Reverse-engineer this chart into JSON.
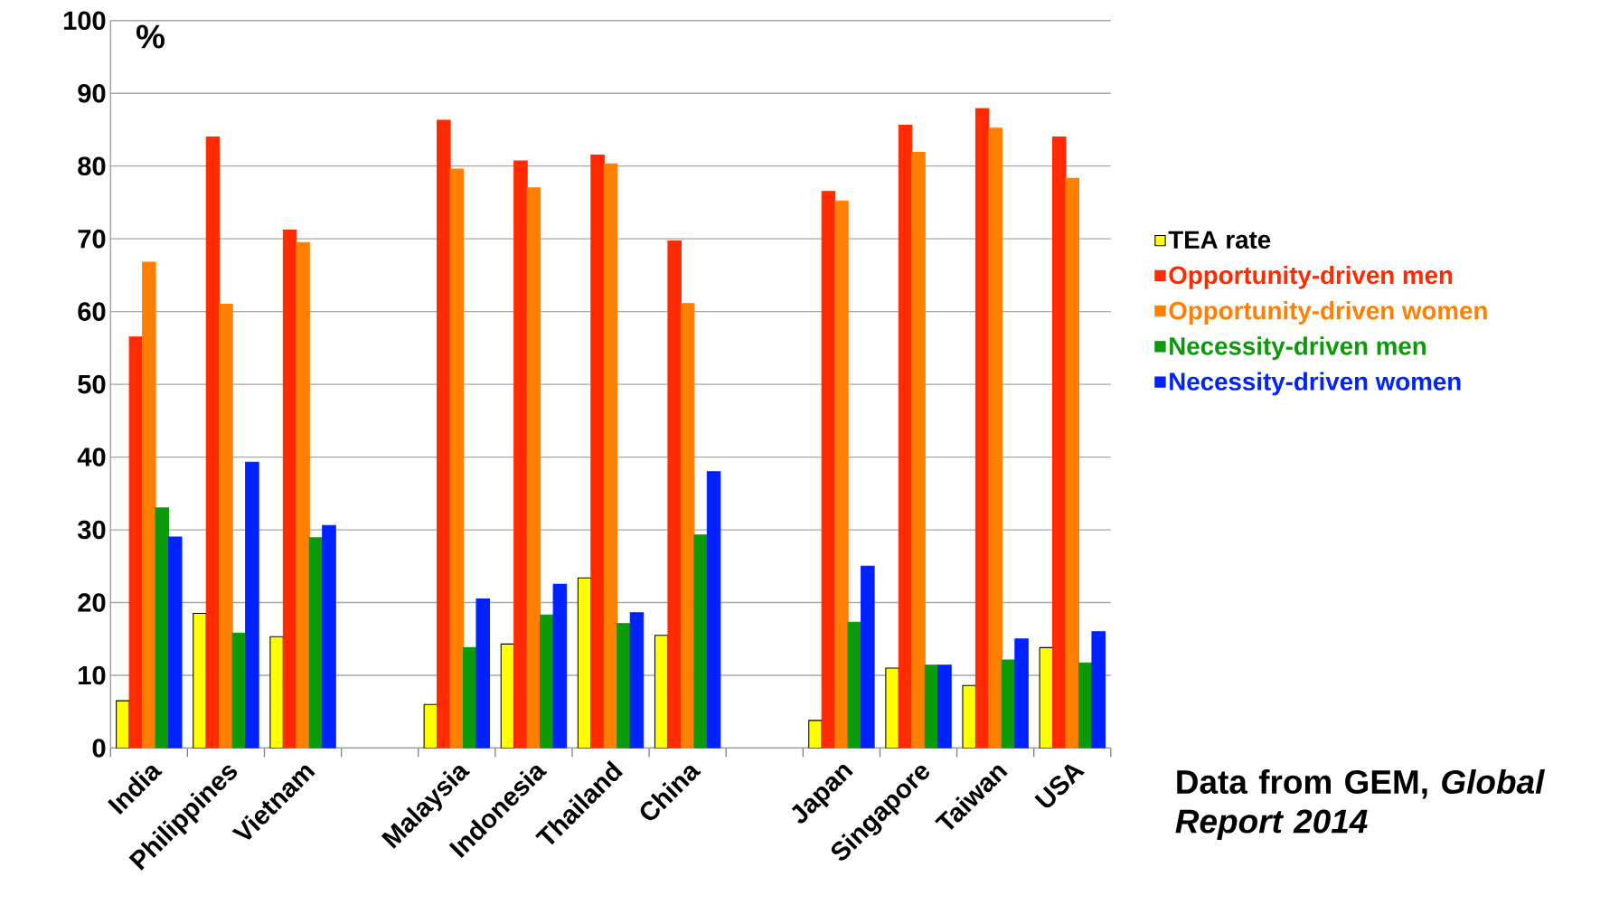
{
  "chart_data": {
    "type": "bar",
    "ylabel": "%",
    "categories": [
      "India",
      "Philippines",
      "Vietnam",
      null,
      "Malaysia",
      "Indonesia",
      "Thailand",
      "China",
      null,
      "Japan",
      "Singapore",
      "Taiwan",
      "USA"
    ],
    "series": [
      {
        "name": "TEA rate",
        "color": "#ffff00",
        "values": [
          6.5,
          18.5,
          15.3,
          null,
          6,
          14.3,
          23.4,
          15.5,
          null,
          3.8,
          11,
          8.6,
          13.8
        ]
      },
      {
        "name": "Opportunity-driven men",
        "color": "#ff2a00",
        "values": [
          56.5,
          84,
          71.2,
          null,
          86.3,
          80.7,
          81.5,
          69.7,
          null,
          76.5,
          85.6,
          87.9,
          84
        ]
      },
      {
        "name": "Opportunity-driven women",
        "color": "#ff7f00",
        "values": [
          66.8,
          61,
          69.5,
          null,
          79.6,
          77,
          80.3,
          61.1,
          null,
          75.2,
          81.9,
          85.2,
          78.3
        ]
      },
      {
        "name": "Necessity-driven men",
        "color": "#0a9a0a",
        "values": [
          33,
          15.8,
          28.9,
          null,
          13.8,
          18.3,
          17.1,
          29.3,
          null,
          17.3,
          11.4,
          12.1,
          11.7
        ]
      },
      {
        "name": "Necessity-driven women",
        "color": "#0022ff",
        "values": [
          29,
          39.3,
          30.6,
          null,
          20.5,
          22.5,
          18.6,
          38,
          null,
          25,
          11.4,
          15,
          16
        ]
      }
    ],
    "ylim": [
      0,
      100
    ],
    "yticks": [
      0,
      10,
      20,
      30,
      40,
      50,
      60,
      70,
      80,
      90,
      100
    ],
    "grid": "y",
    "legend": "right",
    "annotations": [
      "Data from GEM, *Global Report 2014*"
    ]
  }
}
